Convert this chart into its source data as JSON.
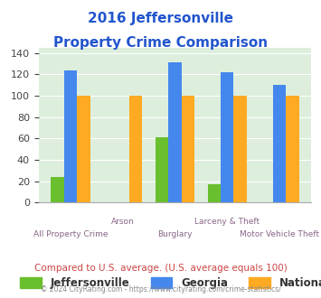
{
  "title_line1": "2016 Jeffersonville",
  "title_line2": "Property Crime Comparison",
  "categories": [
    "All Property Crime",
    "Arson",
    "Burglary",
    "Larceny & Theft",
    "Motor Vehicle Theft"
  ],
  "jeffersonville": [
    24,
    0,
    61,
    17,
    0
  ],
  "georgia": [
    124,
    0,
    131,
    122,
    110
  ],
  "national": [
    100,
    100,
    100,
    100,
    100
  ],
  "jeffersonville_color": "#6abf2e",
  "georgia_color": "#4488ee",
  "national_color": "#ffaa22",
  "ylim": [
    0,
    145
  ],
  "yticks": [
    0,
    20,
    40,
    60,
    80,
    100,
    120,
    140
  ],
  "legend_labels": [
    "Jeffersonville",
    "Georgia",
    "National"
  ],
  "subtitle": "Compared to U.S. average. (U.S. average equals 100)",
  "footer": "© 2024 CityRating.com - https://www.cityrating.com/crime-statistics/",
  "title_color": "#2255cc",
  "subtitle_color": "#cc4444",
  "footer_color": "#888888",
  "bg_color": "#ddeedd",
  "xlabel_color": "#886688",
  "bar_width": 0.25
}
